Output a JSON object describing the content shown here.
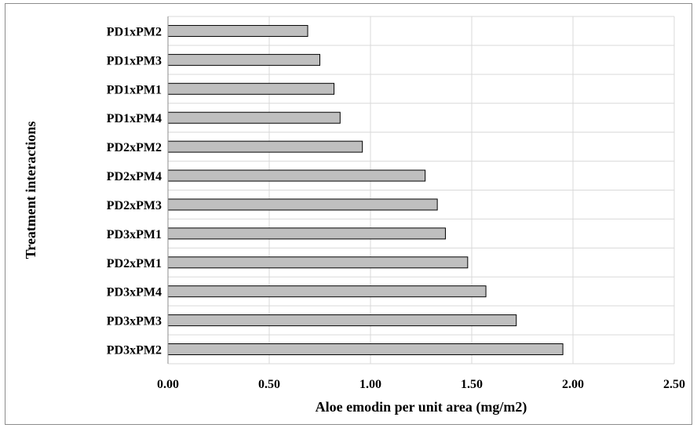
{
  "chart_data": {
    "type": "bar",
    "orientation": "horizontal",
    "title": "",
    "xlabel": "Aloe emodin per unit area (mg/m2)",
    "ylabel": "Treatment interactions",
    "categories": [
      "PD1xPM2",
      "PD1xPM3",
      "PD1xPM1",
      "PD1xPM4",
      "PD2xPM2",
      "PD2xPM4",
      "PD2xPM3",
      "PD3xPM1",
      "PD2xPM1",
      "PD3xPM4",
      "PD3xPM3",
      "PD3xPM2"
    ],
    "values": [
      0.69,
      0.75,
      0.82,
      0.85,
      0.96,
      1.27,
      1.33,
      1.37,
      1.48,
      1.57,
      1.72,
      1.95
    ],
    "xlim": [
      0,
      2.5
    ],
    "x_ticks": [
      "0.00",
      "0.50",
      "1.00",
      "1.50",
      "2.00",
      "2.50"
    ],
    "x_tick_values": [
      0,
      0.5,
      1.0,
      1.5,
      2.0,
      2.5
    ],
    "grid": true,
    "legend": "none",
    "bar_color": "#bfbfbf",
    "bar_edge_color": "#000000",
    "grid_color": "#d9d9d9"
  }
}
